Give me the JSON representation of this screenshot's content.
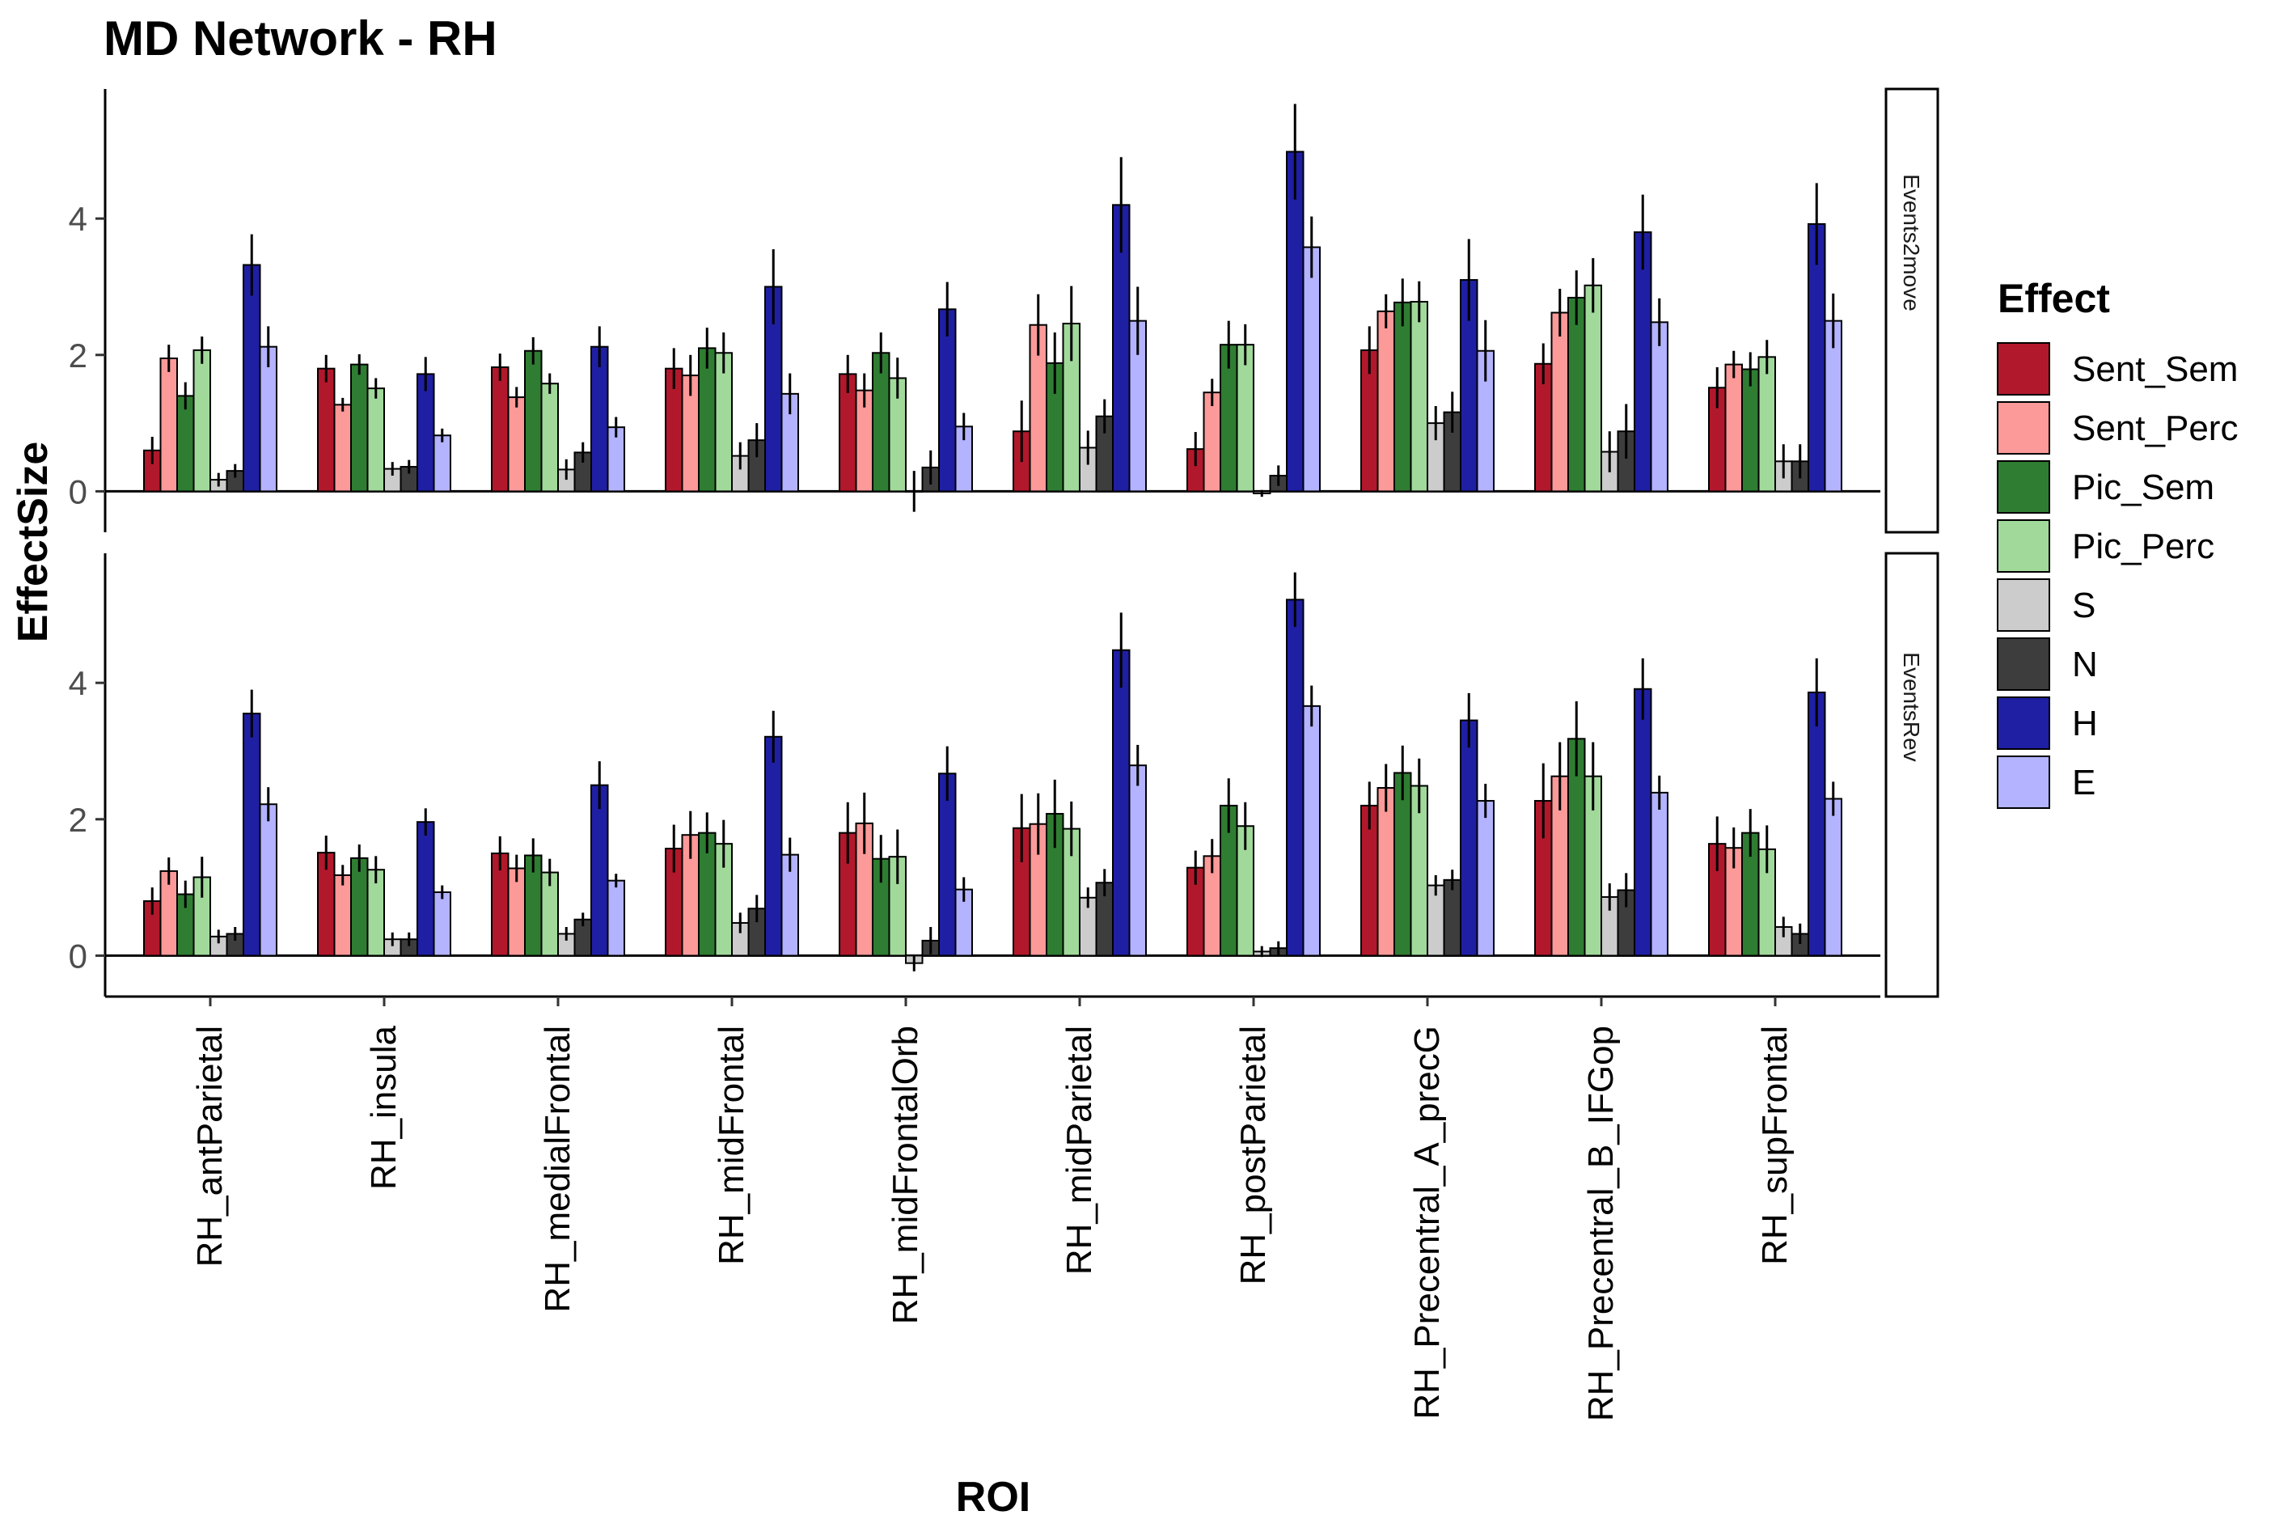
{
  "chart_data": {
    "type": "bar",
    "title": "MD Network - RH",
    "xlabel": "ROI",
    "ylabel": "EffectSize",
    "ylim": [
      -0.6,
      5.9
    ],
    "yticks": [
      0,
      2,
      4
    ],
    "grid": false,
    "legend": {
      "title": "Effect",
      "placement": "right"
    },
    "categories": [
      "RH_antParietal",
      "RH_insula",
      "RH_medialFrontal",
      "RH_midFrontal",
      "RH_midFrontalOrb",
      "RH_midParietal",
      "RH_postParietal",
      "RH_Precentral_A_precG",
      "RH_Precentral_B_IFGop",
      "RH_supFrontal"
    ],
    "series_names": [
      "Sent_Sem",
      "Sent_Perc",
      "Pic_Sem",
      "Pic_Perc",
      "S",
      "N",
      "H",
      "E"
    ],
    "series_colors": [
      "#b2182b",
      "#fb9a99",
      "#2f7d32",
      "#a1d99b",
      "#cccccc",
      "#3d3d3d",
      "#1f1fa3",
      "#b3b3ff"
    ],
    "panels": [
      {
        "strip": "Events2move",
        "values": [
          [
            0.6,
            1.95,
            1.4,
            2.07,
            0.17,
            0.3,
            3.32,
            2.12
          ],
          [
            1.8,
            1.27,
            1.86,
            1.51,
            0.33,
            0.36,
            1.72,
            0.82
          ],
          [
            1.82,
            1.38,
            2.06,
            1.58,
            0.32,
            0.57,
            2.12,
            0.94
          ],
          [
            1.8,
            1.7,
            2.1,
            2.03,
            0.52,
            0.75,
            3.0,
            1.43
          ],
          [
            1.72,
            1.48,
            2.03,
            1.66,
            0.0,
            0.35,
            2.67,
            0.95
          ],
          [
            0.88,
            2.44,
            1.88,
            2.46,
            0.64,
            1.1,
            4.2,
            2.5
          ],
          [
            0.62,
            1.45,
            2.15,
            2.15,
            -0.03,
            0.23,
            4.98,
            3.58
          ],
          [
            2.07,
            2.64,
            2.77,
            2.78,
            1.0,
            1.16,
            3.1,
            2.06
          ],
          [
            1.87,
            2.62,
            2.84,
            3.02,
            0.58,
            0.88,
            3.8,
            2.48
          ],
          [
            1.52,
            1.86,
            1.79,
            1.97,
            0.44,
            0.44,
            3.92,
            2.5
          ]
        ],
        "errors": [
          [
            0.2,
            0.2,
            0.2,
            0.2,
            0.1,
            0.1,
            0.45,
            0.3
          ],
          [
            0.2,
            0.1,
            0.15,
            0.15,
            0.1,
            0.1,
            0.25,
            0.1
          ],
          [
            0.2,
            0.15,
            0.2,
            0.15,
            0.15,
            0.15,
            0.3,
            0.15
          ],
          [
            0.3,
            0.3,
            0.3,
            0.3,
            0.2,
            0.25,
            0.55,
            0.3
          ],
          [
            0.28,
            0.25,
            0.3,
            0.3,
            0.3,
            0.25,
            0.4,
            0.2
          ],
          [
            0.45,
            0.45,
            0.45,
            0.55,
            0.25,
            0.25,
            0.7,
            0.5
          ],
          [
            0.25,
            0.2,
            0.35,
            0.3,
            0.05,
            0.15,
            0.7,
            0.45
          ],
          [
            0.35,
            0.25,
            0.35,
            0.3,
            0.25,
            0.3,
            0.6,
            0.45
          ],
          [
            0.3,
            0.35,
            0.4,
            0.4,
            0.3,
            0.4,
            0.55,
            0.35
          ],
          [
            0.3,
            0.2,
            0.25,
            0.25,
            0.25,
            0.25,
            0.6,
            0.4
          ]
        ]
      },
      {
        "strip": "EventsRev",
        "values": [
          [
            0.8,
            1.24,
            0.9,
            1.15,
            0.28,
            0.32,
            3.55,
            2.22
          ],
          [
            1.51,
            1.18,
            1.43,
            1.26,
            0.24,
            0.24,
            1.96,
            0.93
          ],
          [
            1.5,
            1.28,
            1.47,
            1.22,
            0.32,
            0.53,
            2.5,
            1.1
          ],
          [
            1.57,
            1.77,
            1.8,
            1.64,
            0.48,
            0.69,
            3.21,
            1.48
          ],
          [
            1.8,
            1.94,
            1.42,
            1.45,
            -0.11,
            0.22,
            2.67,
            0.97
          ],
          [
            1.87,
            1.93,
            2.08,
            1.86,
            0.85,
            1.07,
            4.48,
            2.79
          ],
          [
            1.29,
            1.46,
            2.2,
            1.9,
            0.06,
            0.11,
            5.22,
            3.66
          ],
          [
            2.2,
            2.46,
            2.68,
            2.49,
            1.03,
            1.11,
            3.45,
            2.27
          ],
          [
            2.27,
            2.63,
            3.18,
            2.63,
            0.86,
            0.96,
            3.91,
            2.39
          ],
          [
            1.64,
            1.58,
            1.8,
            1.56,
            0.42,
            0.32,
            3.86,
            2.3
          ]
        ],
        "errors": [
          [
            0.2,
            0.2,
            0.2,
            0.3,
            0.1,
            0.1,
            0.35,
            0.25
          ],
          [
            0.25,
            0.15,
            0.2,
            0.2,
            0.1,
            0.1,
            0.2,
            0.1
          ],
          [
            0.25,
            0.2,
            0.25,
            0.2,
            0.1,
            0.1,
            0.35,
            0.1
          ],
          [
            0.35,
            0.35,
            0.3,
            0.35,
            0.15,
            0.2,
            0.38,
            0.25
          ],
          [
            0.45,
            0.45,
            0.35,
            0.4,
            0.12,
            0.2,
            0.4,
            0.18
          ],
          [
            0.5,
            0.45,
            0.5,
            0.4,
            0.15,
            0.2,
            0.55,
            0.3
          ],
          [
            0.25,
            0.25,
            0.4,
            0.35,
            0.08,
            0.1,
            0.4,
            0.3
          ],
          [
            0.35,
            0.35,
            0.4,
            0.4,
            0.15,
            0.15,
            0.4,
            0.25
          ],
          [
            0.55,
            0.5,
            0.55,
            0.5,
            0.2,
            0.25,
            0.45,
            0.25
          ],
          [
            0.4,
            0.3,
            0.35,
            0.35,
            0.15,
            0.15,
            0.5,
            0.25
          ]
        ]
      }
    ]
  }
}
